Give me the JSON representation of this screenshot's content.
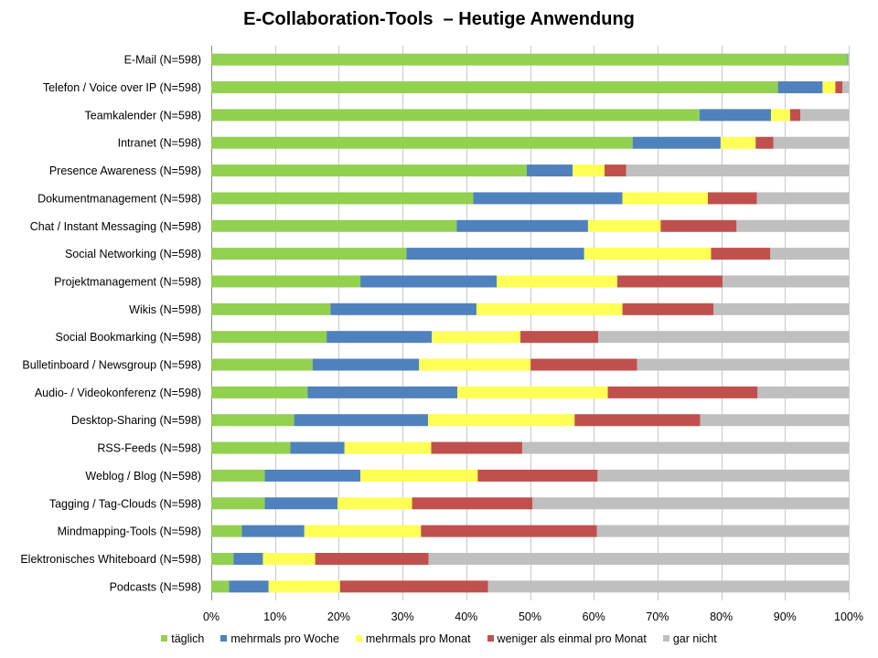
{
  "chart_data": {
    "type": "bar",
    "orientation": "horizontal",
    "stacked": true,
    "percent": true,
    "title": "E-Collaboration-Tools  – Heutige Anwendung",
    "xlabel": "",
    "ylabel": "",
    "xlim": [
      0,
      100
    ],
    "x_ticks": [
      "0%",
      "10%",
      "20%",
      "30%",
      "40%",
      "50%",
      "60%",
      "70%",
      "80%",
      "90%",
      "100%"
    ],
    "grid": "vertical",
    "legend_position": "bottom",
    "categories": [
      "E-Mail (N=598)",
      "Telefon / Voice over IP (N=598)",
      "Teamkalender (N=598)",
      "Intranet (N=598)",
      "Presence Awareness (N=598)",
      "Dokumentmanagement (N=598)",
      "Chat / Instant Messaging (N=598)",
      "Social Networking (N=598)",
      "Projektmanagement (N=598)",
      "Wikis (N=598)",
      "Social Bookmarking (N=598)",
      "Bulletinboard / Newsgroup (N=598)",
      "Audio- / Videokonferenz (N=598)",
      "Desktop-Sharing (N=598)",
      "RSS-Feeds (N=598)",
      "Weblog / Blog (N=598)",
      "Tagging / Tag-Clouds (N=598)",
      "Mindmapping-Tools (N=598)",
      "Elektronisches Whiteboard (N=598)",
      "Podcasts (N=598)"
    ],
    "series": [
      {
        "name": "täglich",
        "color": "#92d050",
        "values": [
          99.8,
          88.9,
          76.6,
          66.1,
          49.5,
          41.1,
          38.5,
          30.6,
          23.4,
          18.7,
          18.1,
          15.9,
          15.1,
          13.0,
          12.4,
          8.4,
          8.4,
          4.8,
          3.5,
          2.8
        ]
      },
      {
        "name": "mehrmals pro Woche",
        "color": "#4f81bd",
        "values": [
          0.1,
          7.0,
          11.2,
          13.8,
          7.2,
          23.4,
          20.6,
          27.9,
          21.4,
          22.9,
          16.5,
          16.7,
          23.5,
          21.0,
          8.5,
          15.0,
          11.4,
          9.8,
          4.6,
          6.2
        ]
      },
      {
        "name": "mehrmals pro Monat",
        "color": "#ffff55",
        "values": [
          0.0,
          2.0,
          3.0,
          5.5,
          5.0,
          13.4,
          11.4,
          19.9,
          18.9,
          22.9,
          13.9,
          17.5,
          23.6,
          23.0,
          13.6,
          18.4,
          11.7,
          18.3,
          8.2,
          11.2
        ]
      },
      {
        "name": "weniger als einmal pro Monat",
        "color": "#c0504d",
        "values": [
          0.0,
          1.1,
          1.6,
          2.8,
          3.4,
          7.7,
          11.9,
          9.3,
          16.5,
          14.3,
          12.2,
          16.7,
          23.5,
          19.7,
          14.3,
          18.8,
          18.9,
          27.6,
          17.8,
          23.2
        ]
      },
      {
        "name": "gar nicht",
        "color": "#bfbfbf",
        "values": [
          0.1,
          1.0,
          7.6,
          11.8,
          34.9,
          14.4,
          17.6,
          12.3,
          19.8,
          21.2,
          39.3,
          33.2,
          14.3,
          23.3,
          51.2,
          39.4,
          49.6,
          39.5,
          65.9,
          56.6
        ]
      }
    ]
  }
}
